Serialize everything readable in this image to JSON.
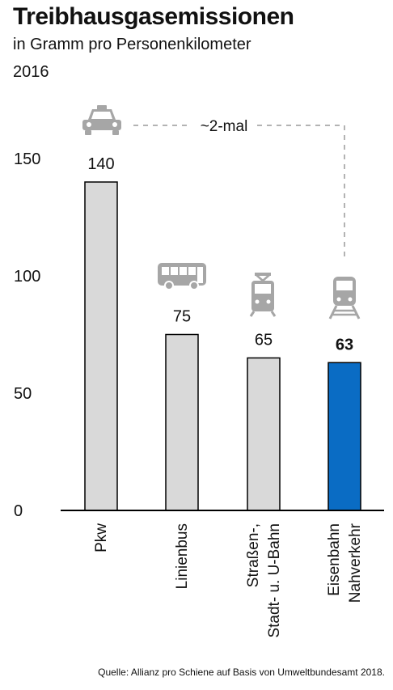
{
  "chart_data": {
    "type": "bar",
    "title": "Treibhausgasemissionen",
    "subtitle": "in Gramm pro Personenkilometer",
    "year": "2016",
    "categories": [
      [
        "Pkw"
      ],
      [
        "Linienbus"
      ],
      [
        "Straßen-,",
        "Stadt- u. U-Bahn"
      ],
      [
        "Eisenbahn",
        "Nahverkehr"
      ]
    ],
    "values": [
      140,
      75,
      65,
      63
    ],
    "value_labels": [
      "140",
      "75",
      "65",
      "63"
    ],
    "highlight_index": 3,
    "colors": {
      "bar": "#d9d9d9",
      "highlight": "#0a6cc4",
      "axis": "#000000",
      "icon": "#a6a6a6",
      "dash": "#b3b3b3"
    },
    "icons": [
      "car-icon",
      "bus-icon",
      "tram-icon",
      "train-icon"
    ],
    "ylim": [
      0,
      160
    ],
    "yticks": [
      0,
      50,
      100,
      150
    ],
    "ytick_labels": [
      "0",
      "50",
      "100",
      "150"
    ],
    "annotation": "~2-mal",
    "source": "Quelle: Allianz pro Schiene auf Basis von Umweltbundesamt 2018."
  }
}
